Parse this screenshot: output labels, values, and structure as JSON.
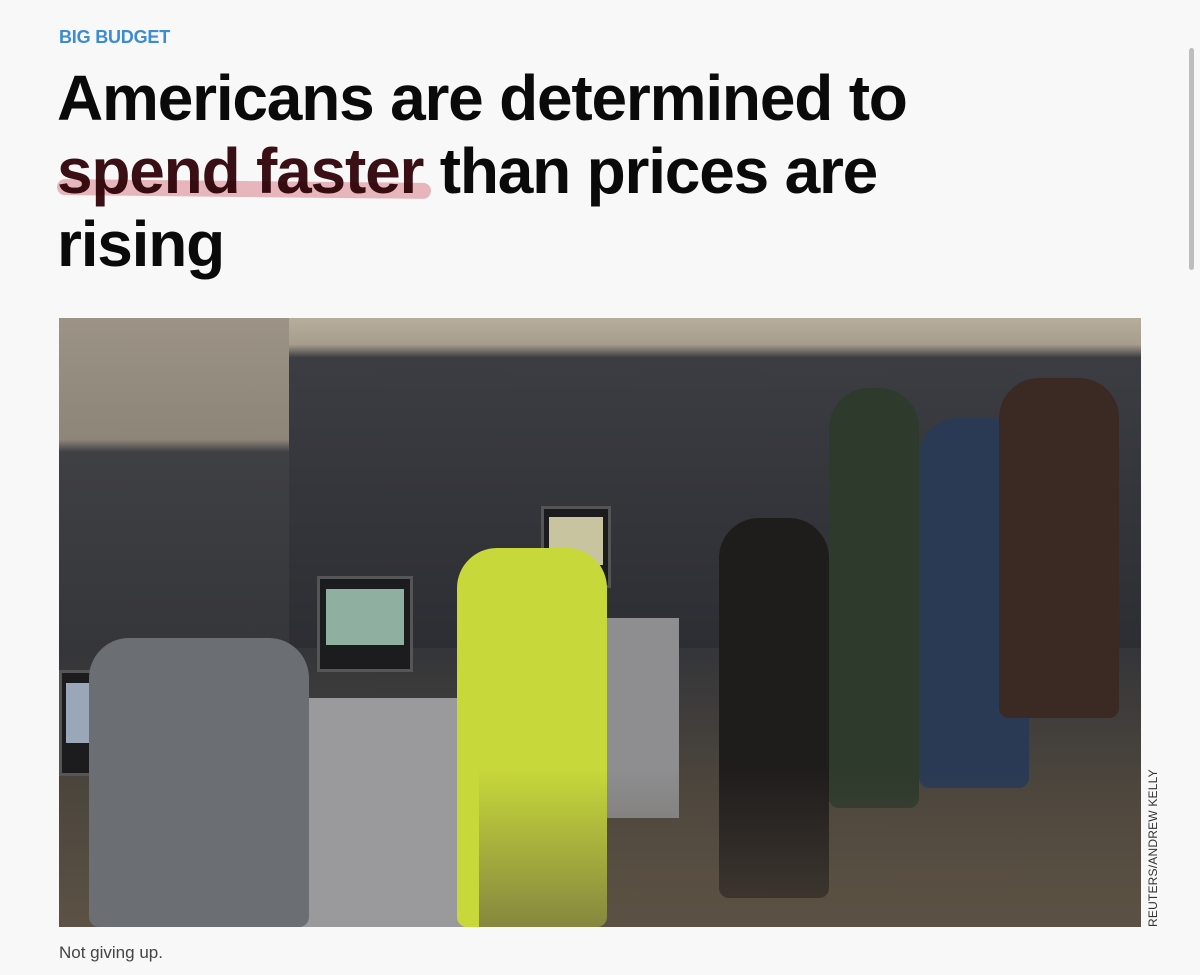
{
  "article": {
    "kicker": "BIG BUDGET",
    "headline": {
      "line1": "Americans are determined to",
      "highlight": "spend faster",
      "line2_rest": " than prices are",
      "line3": "rising"
    },
    "image": {
      "credit": "REUTERS/ANDREW KELLY",
      "caption": "Not giving up."
    }
  },
  "colors": {
    "kicker": "#3d8bd1",
    "highlight": "#e8a3ad",
    "headline": "#0a0a0a"
  }
}
